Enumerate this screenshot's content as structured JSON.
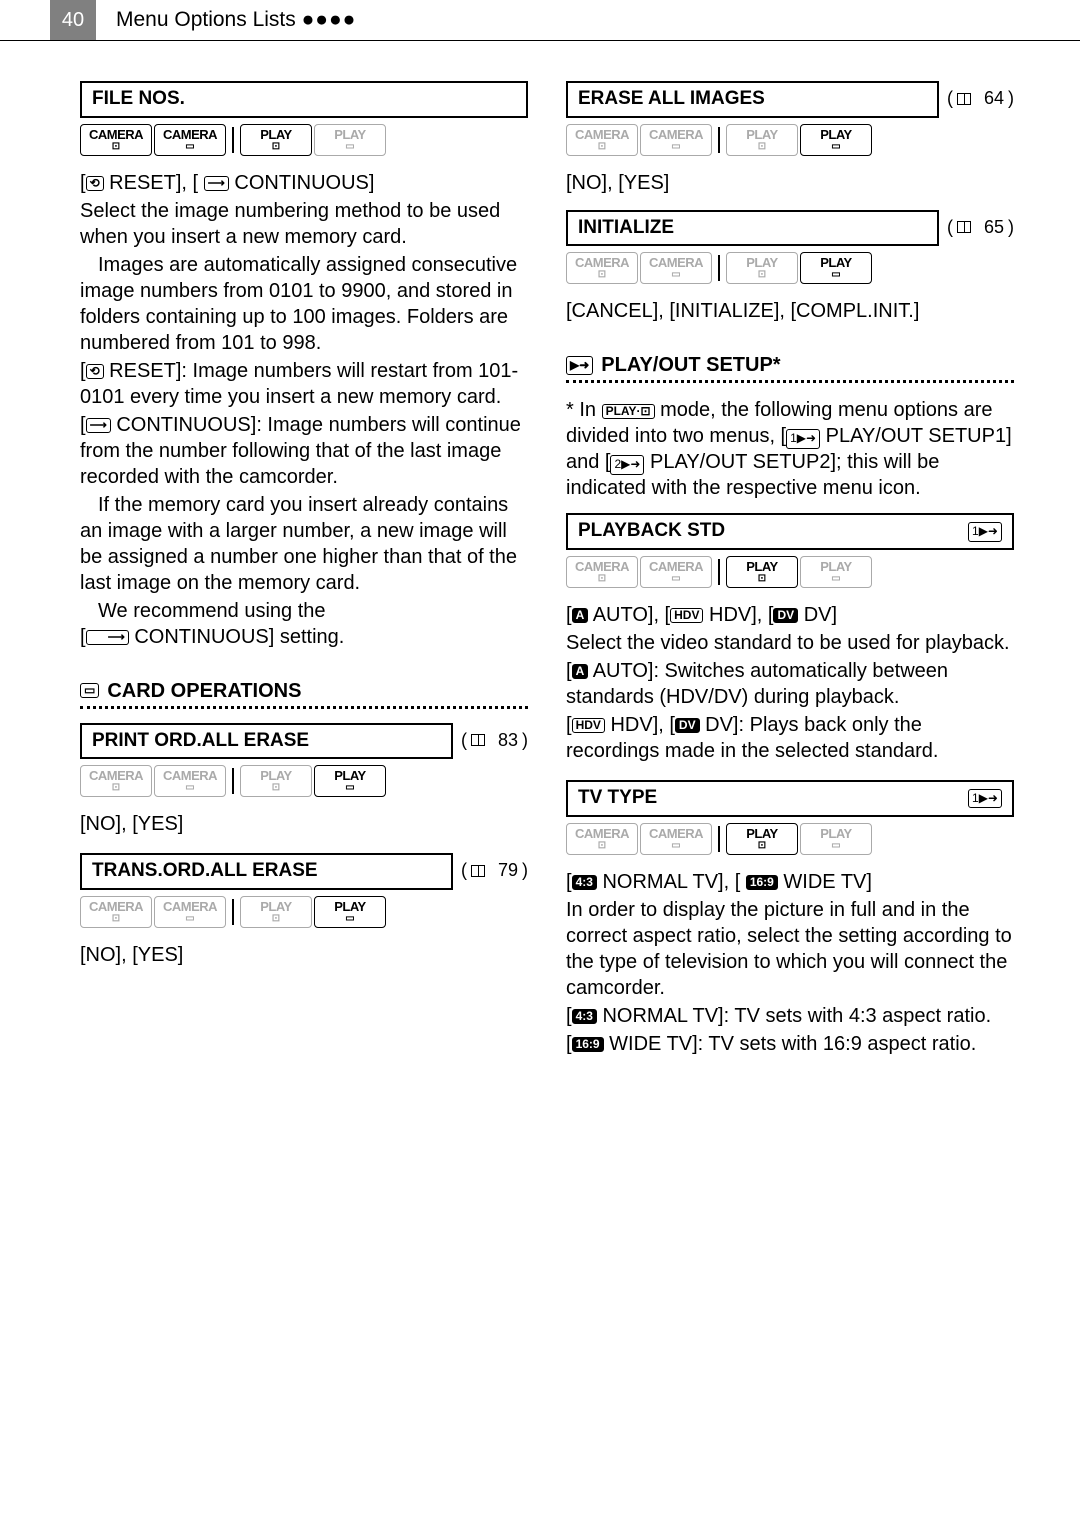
{
  "header": {
    "page": "40",
    "title": "Menu Options Lists",
    "dots": "●●●●"
  },
  "left": {
    "file_nos": {
      "label": "FILE NOS.",
      "modes": [
        {
          "top": "CAMERA",
          "bot": "⊡",
          "dim": false
        },
        {
          "top": "CAMERA",
          "bot": "▭",
          "dim": false
        },
        {
          "top": "PLAY",
          "bot": "⊡",
          "dim": false
        },
        {
          "top": "PLAY",
          "bot": "▭",
          "dim": true
        }
      ],
      "options_line_prefix": "[",
      "options_line_mid1": " RESET], [ ",
      "options_line_mid2": " CONTINUOUS]",
      "p1": "Select the image numbering method to be used when you insert a new memory card.",
      "p2": "Images are automatically assigned consecutive image numbers from 0101 to 9900, and stored in folders containing up to 100 images. Folders are numbered from 101 to 998.",
      "p3a": "[",
      "p3b": " RESET]: Image numbers will restart from 101-0101 every time you insert a new memory card.",
      "p4a": "[",
      "p4b": " CONTINUOUS]: Image numbers will continue from the number following that of the last image recorded with the camcorder.",
      "p5": "If the memory card you insert already contains an image with a larger number, a new image will be assigned a number one higher than that of the last image on the memory card.",
      "p6a": "We recommend using the",
      "p6b": "[",
      "p6c": " CONTINUOUS] setting."
    },
    "card_ops": {
      "heading": "CARD OPERATIONS",
      "print": {
        "label": "PRINT ORD.ALL ERASE",
        "ref": "83",
        "modes": [
          {
            "top": "CAMERA",
            "bot": "⊡",
            "dim": true
          },
          {
            "top": "CAMERA",
            "bot": "▭",
            "dim": true
          },
          {
            "top": "PLAY",
            "bot": "⊡",
            "dim": true
          },
          {
            "top": "PLAY",
            "bot": "▭",
            "dim": false
          }
        ],
        "options": "[NO], [YES]"
      },
      "trans": {
        "label": "TRANS.ORD.ALL ERASE",
        "ref": "79",
        "modes": [
          {
            "top": "CAMERA",
            "bot": "⊡",
            "dim": true
          },
          {
            "top": "CAMERA",
            "bot": "▭",
            "dim": true
          },
          {
            "top": "PLAY",
            "bot": "⊡",
            "dim": true
          },
          {
            "top": "PLAY",
            "bot": "▭",
            "dim": false
          }
        ],
        "options": "[NO], [YES]"
      }
    }
  },
  "right": {
    "erase": {
      "label": "ERASE ALL IMAGES",
      "ref": "64",
      "modes": [
        {
          "top": "CAMERA",
          "bot": "⊡",
          "dim": true
        },
        {
          "top": "CAMERA",
          "bot": "▭",
          "dim": true
        },
        {
          "top": "PLAY",
          "bot": "⊡",
          "dim": true
        },
        {
          "top": "PLAY",
          "bot": "▭",
          "dim": false
        }
      ],
      "options": "[NO], [YES]"
    },
    "init": {
      "label": "INITIALIZE",
      "ref": "65",
      "modes": [
        {
          "top": "CAMERA",
          "bot": "⊡",
          "dim": true
        },
        {
          "top": "CAMERA",
          "bot": "▭",
          "dim": true
        },
        {
          "top": "PLAY",
          "bot": "⊡",
          "dim": true
        },
        {
          "top": "PLAY",
          "bot": "▭",
          "dim": false
        }
      ],
      "options": "[CANCEL], [INITIALIZE], [COMPL.INIT.]"
    },
    "playout": {
      "heading": "PLAY/OUT SETUP*",
      "note1a": "* In ",
      "note1b": " mode, the following menu options are divided into two menus, [",
      "note1c": " PLAY/OUT SETUP1] and [",
      "note1d": " PLAY/OUT SETUP2]; this will be indicated with the respective menu icon.",
      "playback": {
        "label": "PLAYBACK STD",
        "modes": [
          {
            "top": "CAMERA",
            "bot": "⊡",
            "dim": true
          },
          {
            "top": "CAMERA",
            "bot": "▭",
            "dim": true
          },
          {
            "top": "PLAY",
            "bot": "⊡",
            "dim": false
          },
          {
            "top": "PLAY",
            "bot": "▭",
            "dim": true
          }
        ],
        "opt_line_a": "[",
        "opt_line_b": " AUTO], [",
        "opt_line_c": " HDV], [",
        "opt_line_d": " DV]",
        "p1": "Select the video standard to be used for playback.",
        "p2a": "[",
        "p2b": " AUTO]: Switches automatically between standards (HDV/DV) during playback.",
        "p3a": "[",
        "p3b": " HDV], [",
        "p3c": " DV]: Plays back only the recordings made in the selected standard."
      },
      "tvtype": {
        "label": "TV TYPE",
        "modes": [
          {
            "top": "CAMERA",
            "bot": "⊡",
            "dim": true
          },
          {
            "top": "CAMERA",
            "bot": "▭",
            "dim": true
          },
          {
            "top": "PLAY",
            "bot": "⊡",
            "dim": false
          },
          {
            "top": "PLAY",
            "bot": "▭",
            "dim": true
          }
        ],
        "opt_a": "[",
        "opt_b": " NORMAL TV], [ ",
        "opt_c": " WIDE TV]",
        "p1": "In order to display the picture in full and in the correct aspect ratio, select the setting according to the type of television to which you will connect the camcorder.",
        "p2a": "[",
        "p2b": " NORMAL TV]: TV sets with 4:3 aspect ratio.",
        "p3a": "[",
        "p3b": " WIDE TV]: TV sets with 16:9 aspect ratio."
      }
    }
  }
}
